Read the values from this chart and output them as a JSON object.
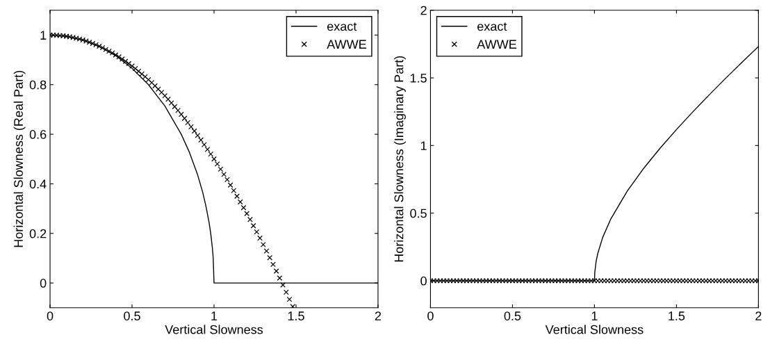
{
  "chart_data": [
    {
      "type": "line",
      "xlabel": "Vertical Slowness",
      "ylabel": "Horizontal Slowness (Real Part)",
      "xlim": [
        0,
        2
      ],
      "xticks": [
        0,
        0.5,
        1,
        1.5,
        2
      ],
      "ylim": [
        -0.1,
        1.1
      ],
      "yticks": [
        0,
        0.2,
        0.4,
        0.6,
        0.8,
        1
      ],
      "grid": false,
      "legend": "top right",
      "series": [
        {
          "name": "exact",
          "color": "#000000",
          "marker": "none",
          "line_style": "solid",
          "x": [
            0,
            0.1,
            0.2,
            0.3,
            0.4,
            0.5,
            0.6,
            0.7,
            0.8,
            0.85,
            0.9,
            0.93,
            0.95,
            0.97,
            0.98,
            0.99,
            0.995,
            1,
            2
          ],
          "values": [
            1,
            0.995,
            0.98,
            0.954,
            0.917,
            0.866,
            0.8,
            0.714,
            0.6,
            0.527,
            0.436,
            0.368,
            0.312,
            0.243,
            0.199,
            0.141,
            0.1,
            0,
            0
          ]
        },
        {
          "name": "AWWE",
          "type": "scatter",
          "color": "#000000",
          "marker": "cross",
          "x": [
            0,
            0.02,
            0.04,
            0.06,
            0.08,
            0.1,
            0.12,
            0.14,
            0.16,
            0.18,
            0.2,
            0.22,
            0.24,
            0.26,
            0.28,
            0.3,
            0.32,
            0.34,
            0.36,
            0.38,
            0.4,
            0.42,
            0.44,
            0.46,
            0.48,
            0.5,
            0.52,
            0.54,
            0.56,
            0.58,
            0.6,
            0.62,
            0.64,
            0.66,
            0.68,
            0.7,
            0.72,
            0.74,
            0.76,
            0.78,
            0.8,
            0.82,
            0.84,
            0.86,
            0.88,
            0.9,
            0.92,
            0.94,
            0.96,
            0.98,
            1,
            1.02,
            1.04,
            1.06,
            1.08,
            1.1,
            1.12,
            1.14,
            1.16,
            1.18,
            1.2,
            1.22,
            1.24,
            1.26,
            1.28,
            1.3,
            1.32,
            1.34,
            1.36,
            1.38,
            1.4,
            1.42,
            1.44,
            1.46,
            1.48
          ],
          "values": [
            1,
            1,
            0.999,
            0.998,
            0.997,
            0.995,
            0.993,
            0.99,
            0.987,
            0.984,
            0.98,
            0.976,
            0.971,
            0.966,
            0.961,
            0.955,
            0.949,
            0.942,
            0.935,
            0.928,
            0.92,
            0.912,
            0.903,
            0.894,
            0.885,
            0.875,
            0.865,
            0.854,
            0.843,
            0.832,
            0.82,
            0.808,
            0.795,
            0.782,
            0.769,
            0.755,
            0.741,
            0.726,
            0.711,
            0.696,
            0.68,
            0.664,
            0.647,
            0.63,
            0.613,
            0.595,
            0.577,
            0.558,
            0.539,
            0.52,
            0.5,
            0.48,
            0.459,
            0.438,
            0.417,
            0.395,
            0.373,
            0.35,
            0.327,
            0.304,
            0.28,
            0.256,
            0.231,
            0.206,
            0.181,
            0.155,
            0.129,
            0.102,
            0.075,
            0.048,
            0.02,
            -0.008,
            -0.037,
            -0.066,
            -0.095
          ]
        }
      ]
    },
    {
      "type": "line",
      "xlabel": "Vertical Slowness",
      "ylabel": "Horizontal Slowness (Imaginary Part)",
      "xlim": [
        0,
        2
      ],
      "xticks": [
        0,
        0.5,
        1,
        1.5,
        2
      ],
      "ylim": [
        -0.2,
        2
      ],
      "yticks": [
        0,
        0.5,
        1,
        1.5,
        2
      ],
      "grid": false,
      "legend": "top left",
      "series": [
        {
          "name": "exact",
          "color": "#000000",
          "marker": "none",
          "line_style": "solid",
          "x": [
            0,
            1,
            1.002,
            1.01,
            1.02,
            1.05,
            1.1,
            1.2,
            1.3,
            1.4,
            1.5,
            1.6,
            1.7,
            1.8,
            1.9,
            2
          ],
          "values": [
            0,
            0,
            0.063,
            0.142,
            0.201,
            0.32,
            0.458,
            0.663,
            0.831,
            0.98,
            1.118,
            1.249,
            1.375,
            1.497,
            1.616,
            1.732
          ]
        },
        {
          "name": "AWWE",
          "type": "scatter",
          "color": "#000000",
          "marker": "cross",
          "x": [
            0,
            0.02,
            0.04,
            0.06,
            0.08,
            0.1,
            0.12,
            0.14,
            0.16,
            0.18,
            0.2,
            0.22,
            0.24,
            0.26,
            0.28,
            0.3,
            0.32,
            0.34,
            0.36,
            0.38,
            0.4,
            0.42,
            0.44,
            0.46,
            0.48,
            0.5,
            0.52,
            0.54,
            0.56,
            0.58,
            0.6,
            0.62,
            0.64,
            0.66,
            0.68,
            0.7,
            0.72,
            0.74,
            0.76,
            0.78,
            0.8,
            0.82,
            0.84,
            0.86,
            0.88,
            0.9,
            0.92,
            0.94,
            0.96,
            0.98,
            1,
            1.02,
            1.04,
            1.06,
            1.08,
            1.1,
            1.12,
            1.14,
            1.16,
            1.18,
            1.2,
            1.22,
            1.24,
            1.26,
            1.28,
            1.3,
            1.32,
            1.34,
            1.36,
            1.38,
            1.4,
            1.42,
            1.44,
            1.46,
            1.48,
            1.5,
            1.52,
            1.54,
            1.56,
            1.58,
            1.6,
            1.62,
            1.64,
            1.66,
            1.68,
            1.7,
            1.72,
            1.74,
            1.76,
            1.78,
            1.8,
            1.82,
            1.84,
            1.86,
            1.88,
            1.9,
            1.92,
            1.94,
            1.96,
            1.98,
            2
          ],
          "values": [
            0,
            0,
            0,
            0,
            0,
            0,
            0,
            0,
            0,
            0,
            0,
            0,
            0,
            0,
            0,
            0,
            0,
            0,
            0,
            0,
            0,
            0,
            0,
            0,
            0,
            0,
            0,
            0,
            0,
            0,
            0,
            0,
            0,
            0,
            0,
            0,
            0,
            0,
            0,
            0,
            0,
            0,
            0,
            0,
            0,
            0,
            0,
            0,
            0,
            0,
            0,
            0,
            0,
            0,
            0,
            0,
            0,
            0,
            0,
            0,
            0,
            0,
            0,
            0,
            0,
            0,
            0,
            0,
            0,
            0,
            0,
            0,
            0,
            0,
            0,
            0,
            0,
            0,
            0,
            0,
            0,
            0,
            0,
            0,
            0,
            0,
            0,
            0,
            0,
            0,
            0,
            0,
            0,
            0,
            0,
            0,
            0,
            0,
            0,
            0,
            0
          ]
        }
      ]
    }
  ]
}
